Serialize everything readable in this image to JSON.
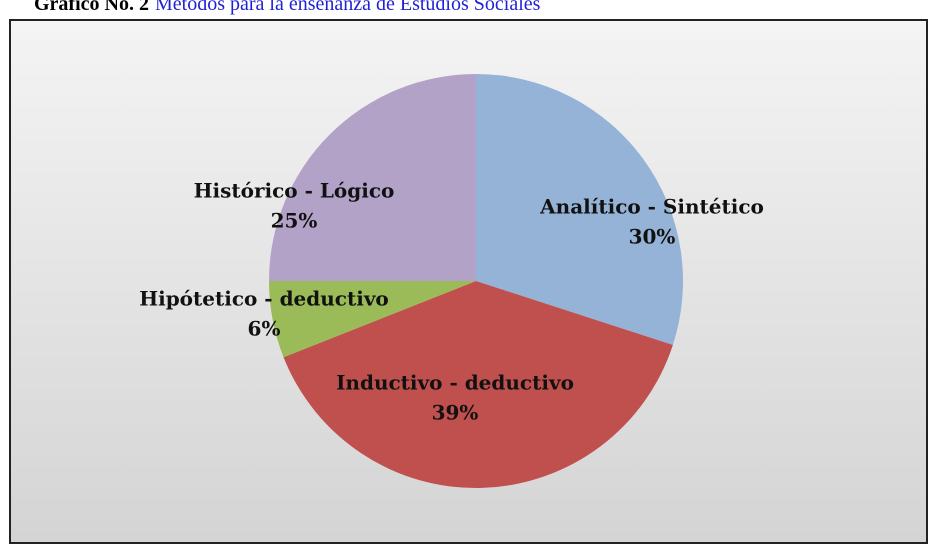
{
  "caption": {
    "number": "Gráfico No. 2",
    "title": "Métodos para la enseñanza de Estudios Sociales"
  },
  "chart_data": {
    "type": "pie",
    "categories": [
      "Analítico - Sintético",
      "Inductivo - deductivo",
      "Hipótetico - deductivo",
      "Histórico - Lógico"
    ],
    "values": [
      30,
      39,
      6,
      25
    ],
    "value_labels": [
      "30%",
      "39%",
      "6%",
      "25%"
    ],
    "colors": [
      "#95b3d7",
      "#c0504d",
      "#9bbb59",
      "#b3a2c7"
    ]
  }
}
